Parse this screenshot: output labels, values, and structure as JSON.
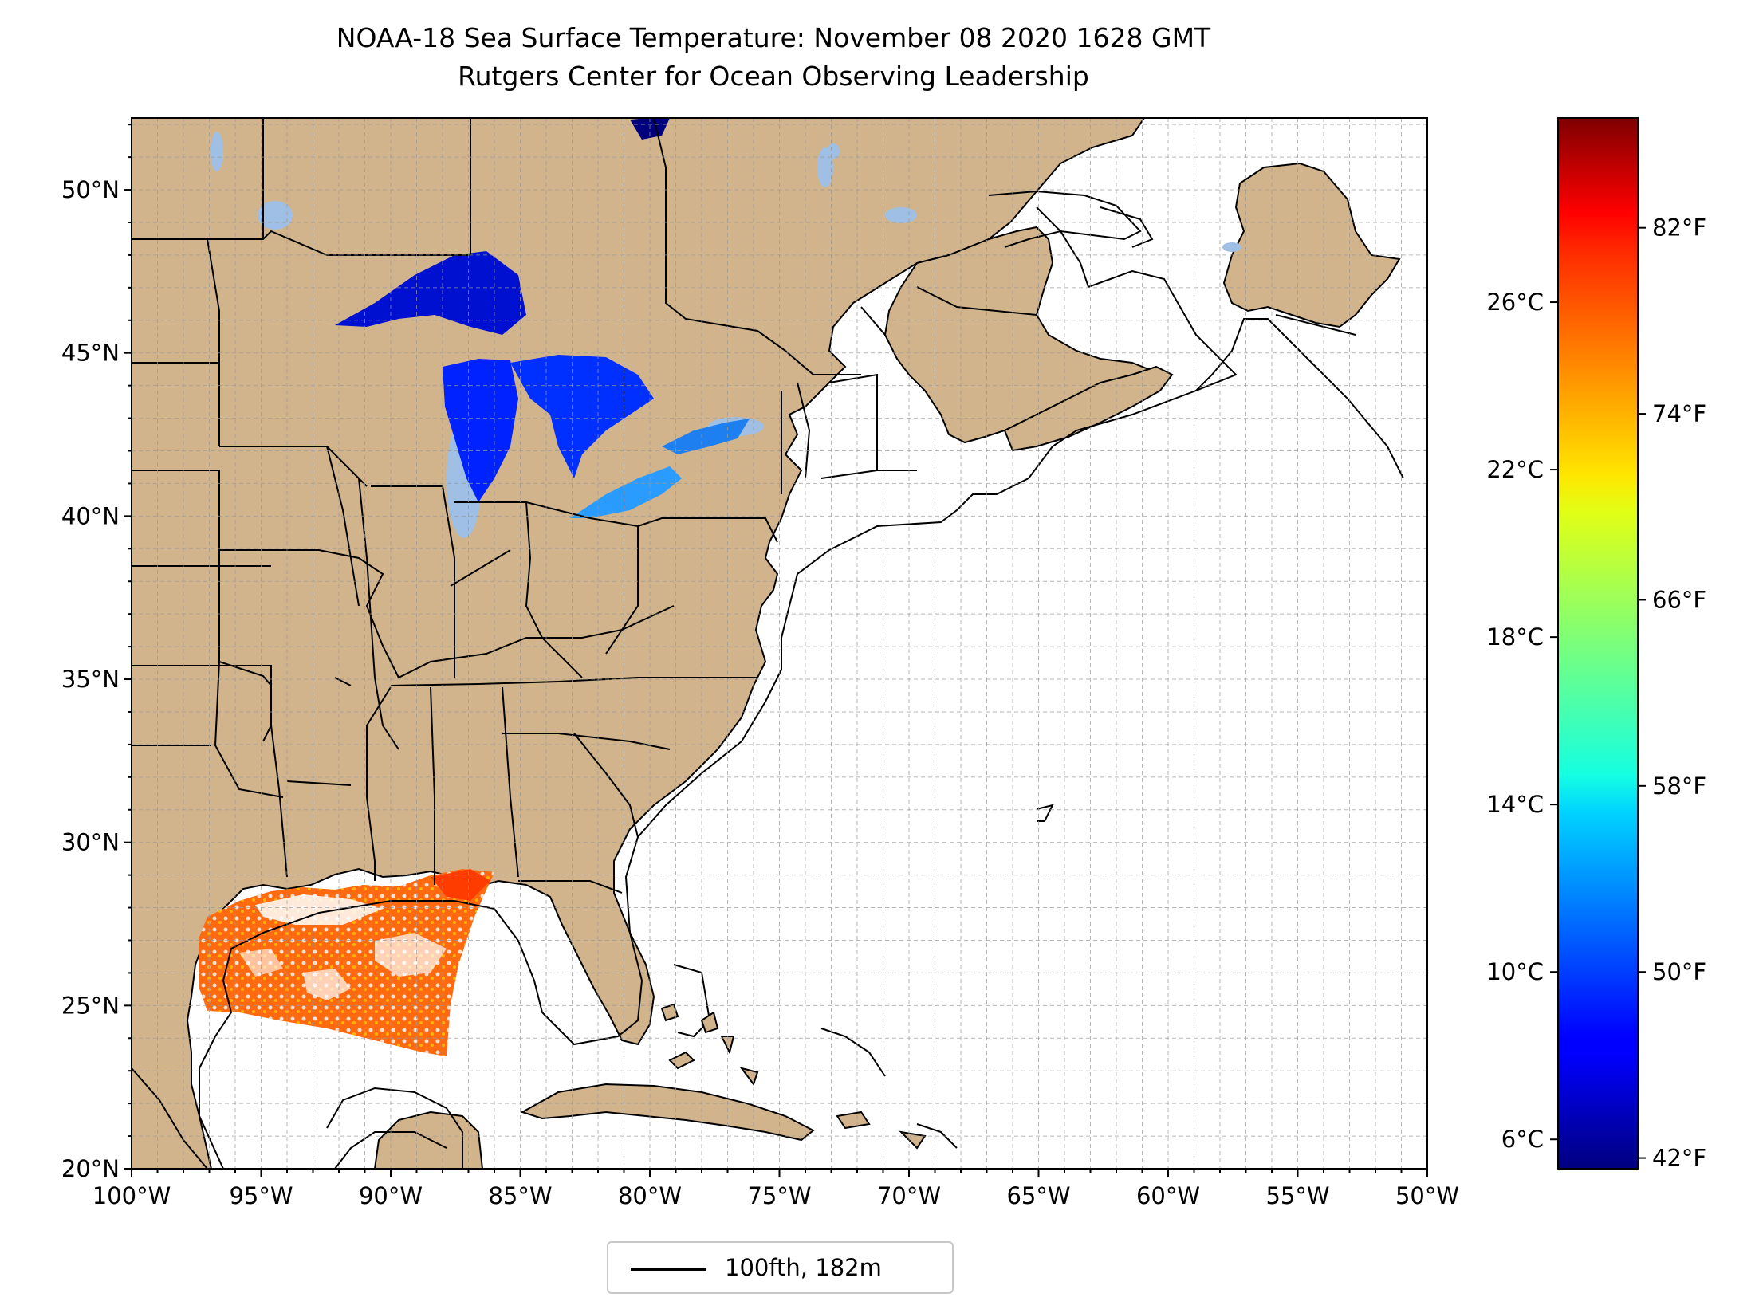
{
  "title": {
    "line1": "NOAA-18 Sea Surface Temperature: November 08 2020 1628 GMT",
    "line2": "Rutgers Center for Ocean Observing Leadership"
  },
  "map": {
    "extent": {
      "lon_min": -100,
      "lon_max": -50,
      "lat_min": 20,
      "lat_max": 52.2
    },
    "lat_ticks": [
      {
        "value": 20,
        "label": "20°N"
      },
      {
        "value": 25,
        "label": "25°N"
      },
      {
        "value": 30,
        "label": "30°N"
      },
      {
        "value": 35,
        "label": "35°N"
      },
      {
        "value": 40,
        "label": "40°N"
      },
      {
        "value": 45,
        "label": "45°N"
      },
      {
        "value": 50,
        "label": "50°N"
      }
    ],
    "lon_ticks": [
      {
        "value": -100,
        "label": "100°W"
      },
      {
        "value": -95,
        "label": "95°W"
      },
      {
        "value": -90,
        "label": "90°W"
      },
      {
        "value": -85,
        "label": "85°W"
      },
      {
        "value": -80,
        "label": "80°W"
      },
      {
        "value": -75,
        "label": "75°W"
      },
      {
        "value": -70,
        "label": "70°W"
      },
      {
        "value": -65,
        "label": "65°W"
      },
      {
        "value": -60,
        "label": "60°W"
      },
      {
        "value": -55,
        "label": "55°W"
      },
      {
        "value": -50,
        "label": "50°W"
      }
    ],
    "gridlines": "dashed, every 1°",
    "colors": {
      "land": "#d2b48c",
      "ocean": "#ffffff",
      "lakes_no_data": "#9fbfe4",
      "coast": "#000000"
    }
  },
  "colorbar": {
    "range_c": [
      5.3,
      30.4
    ],
    "colormap": "jet",
    "celsius_ticks": [
      {
        "value": 6,
        "label": "6°C"
      },
      {
        "value": 10,
        "label": "10°C"
      },
      {
        "value": 14,
        "label": "14°C"
      },
      {
        "value": 18,
        "label": "18°C"
      },
      {
        "value": 22,
        "label": "22°C"
      },
      {
        "value": 26,
        "label": "26°C"
      }
    ],
    "fahrenheit_ticks": [
      {
        "value": 42,
        "label": "42°F"
      },
      {
        "value": 50,
        "label": "50°F"
      },
      {
        "value": 58,
        "label": "58°F"
      },
      {
        "value": 66,
        "label": "66°F"
      },
      {
        "value": 74,
        "label": "74°F"
      },
      {
        "value": 82,
        "label": "82°F"
      }
    ]
  },
  "legend": {
    "label": "100fth, 182m",
    "line_color": "#000000"
  }
}
